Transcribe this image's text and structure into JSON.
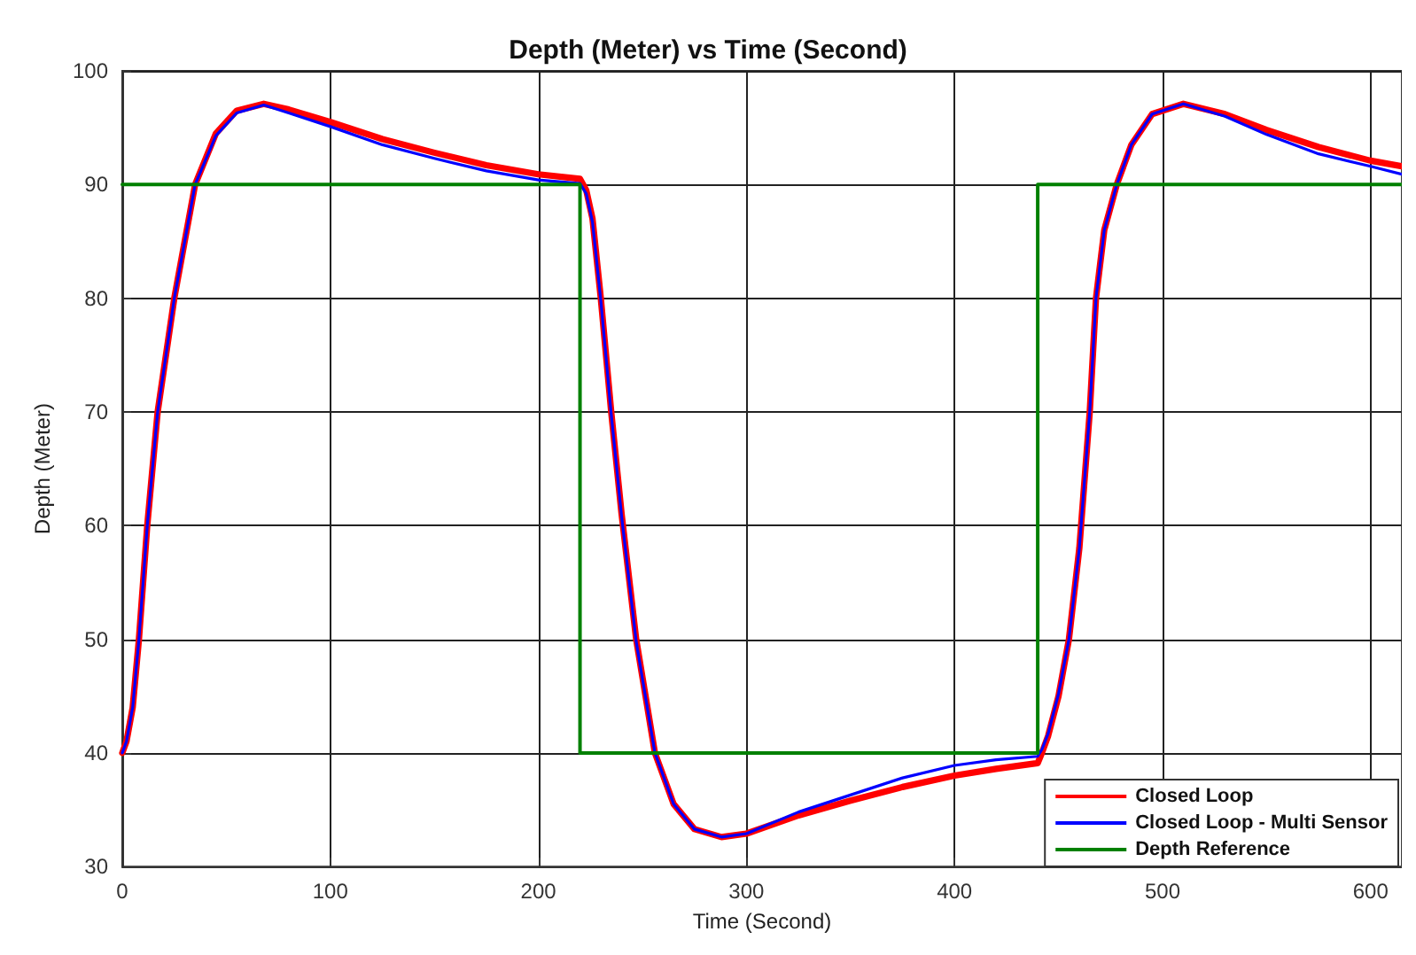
{
  "chart_data": {
    "type": "line",
    "title": "Depth (Meter) vs Time (Second)",
    "xlabel": "Time (Second)",
    "ylabel": "Depth (Meter)",
    "xlim": [
      0,
      615
    ],
    "ylim": [
      30,
      100
    ],
    "xticks": [
      0,
      100,
      200,
      300,
      400,
      500,
      600
    ],
    "yticks": [
      30,
      40,
      50,
      60,
      70,
      80,
      90,
      100
    ],
    "grid": true,
    "legend": "bottom right",
    "marker": "none",
    "line_style": "solid",
    "series": [
      {
        "name": "Closed Loop",
        "color": "#ff0000",
        "x": [
          0,
          2,
          5,
          8,
          12,
          17,
          25,
          30,
          35,
          45,
          55,
          68,
          80,
          100,
          125,
          150,
          175,
          200,
          220,
          223,
          226,
          230,
          235,
          240,
          247,
          256,
          265,
          275,
          288,
          300,
          325,
          350,
          375,
          400,
          420,
          440,
          442,
          445,
          450,
          455,
          460,
          465,
          468,
          472,
          478,
          485,
          495,
          510,
          530,
          550,
          575,
          600,
          615
        ],
        "values": [
          40,
          41,
          44,
          50,
          60,
          70,
          80,
          85,
          90,
          94.5,
          96.5,
          97.1,
          96.6,
          95.5,
          94,
          92.8,
          91.7,
          90.9,
          90.5,
          89.5,
          87,
          80,
          70,
          61,
          50,
          40,
          35.5,
          33.3,
          32.6,
          32.9,
          34.5,
          35.8,
          37,
          38,
          38.6,
          39.1,
          40,
          41.5,
          45,
          50,
          58,
          70,
          80,
          86,
          90,
          93.5,
          96.2,
          97.1,
          96.2,
          94.8,
          93.3,
          92.1,
          91.6
        ]
      },
      {
        "name": "Closed Loop - Multi Sensor",
        "color": "#0000ff",
        "x": [
          0,
          2,
          5,
          8,
          12,
          17,
          25,
          30,
          35,
          45,
          55,
          68,
          80,
          100,
          125,
          150,
          175,
          200,
          220,
          223,
          226,
          230,
          235,
          240,
          247,
          256,
          265,
          275,
          288,
          300,
          325,
          350,
          375,
          400,
          420,
          440,
          442,
          445,
          450,
          455,
          460,
          465,
          468,
          472,
          478,
          485,
          495,
          510,
          530,
          550,
          575,
          600,
          615
        ],
        "values": [
          40,
          41,
          44,
          50,
          60,
          70,
          80,
          85,
          90,
          94.3,
          96.3,
          97,
          96.3,
          95.1,
          93.5,
          92.3,
          91.2,
          90.4,
          90.1,
          89.2,
          86.7,
          79.8,
          69.8,
          60.8,
          49.8,
          40,
          35.5,
          33.3,
          32.6,
          32.9,
          34.8,
          36.3,
          37.8,
          38.9,
          39.4,
          39.7,
          40.3,
          41.7,
          45.2,
          50,
          58,
          70,
          80,
          86,
          90,
          93.5,
          96.2,
          97.1,
          96,
          94.4,
          92.7,
          91.6,
          90.9
        ]
      },
      {
        "name": "Depth Reference",
        "color": "#008000",
        "x": [
          0,
          220,
          220,
          440,
          440,
          615
        ],
        "values": [
          90,
          90,
          40,
          40,
          90,
          90
        ]
      }
    ]
  }
}
